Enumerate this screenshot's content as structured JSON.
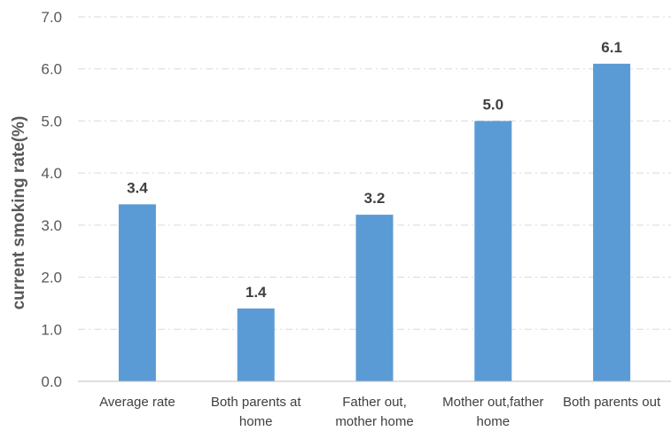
{
  "chart_data": {
    "type": "bar",
    "title": "",
    "xlabel": "",
    "ylabel": "current smoking rate(%)",
    "categories": [
      [
        "Average rate"
      ],
      [
        "Both parents at",
        "home"
      ],
      [
        "Father out,",
        "mother home"
      ],
      [
        "Mother out,father",
        "home"
      ],
      [
        "Both parents out"
      ]
    ],
    "values": [
      3.4,
      1.4,
      3.2,
      5.0,
      6.1
    ],
    "data_labels": [
      "3.4",
      "1.4",
      "3.2",
      "5.0",
      "6.1"
    ],
    "ylim": [
      0,
      7
    ],
    "yticks": [
      "0.0",
      "1.0",
      "2.0",
      "3.0",
      "4.0",
      "5.0",
      "6.0",
      "7.0"
    ],
    "grid": true,
    "legend": "none",
    "bar_color": "#5b9bd5"
  }
}
